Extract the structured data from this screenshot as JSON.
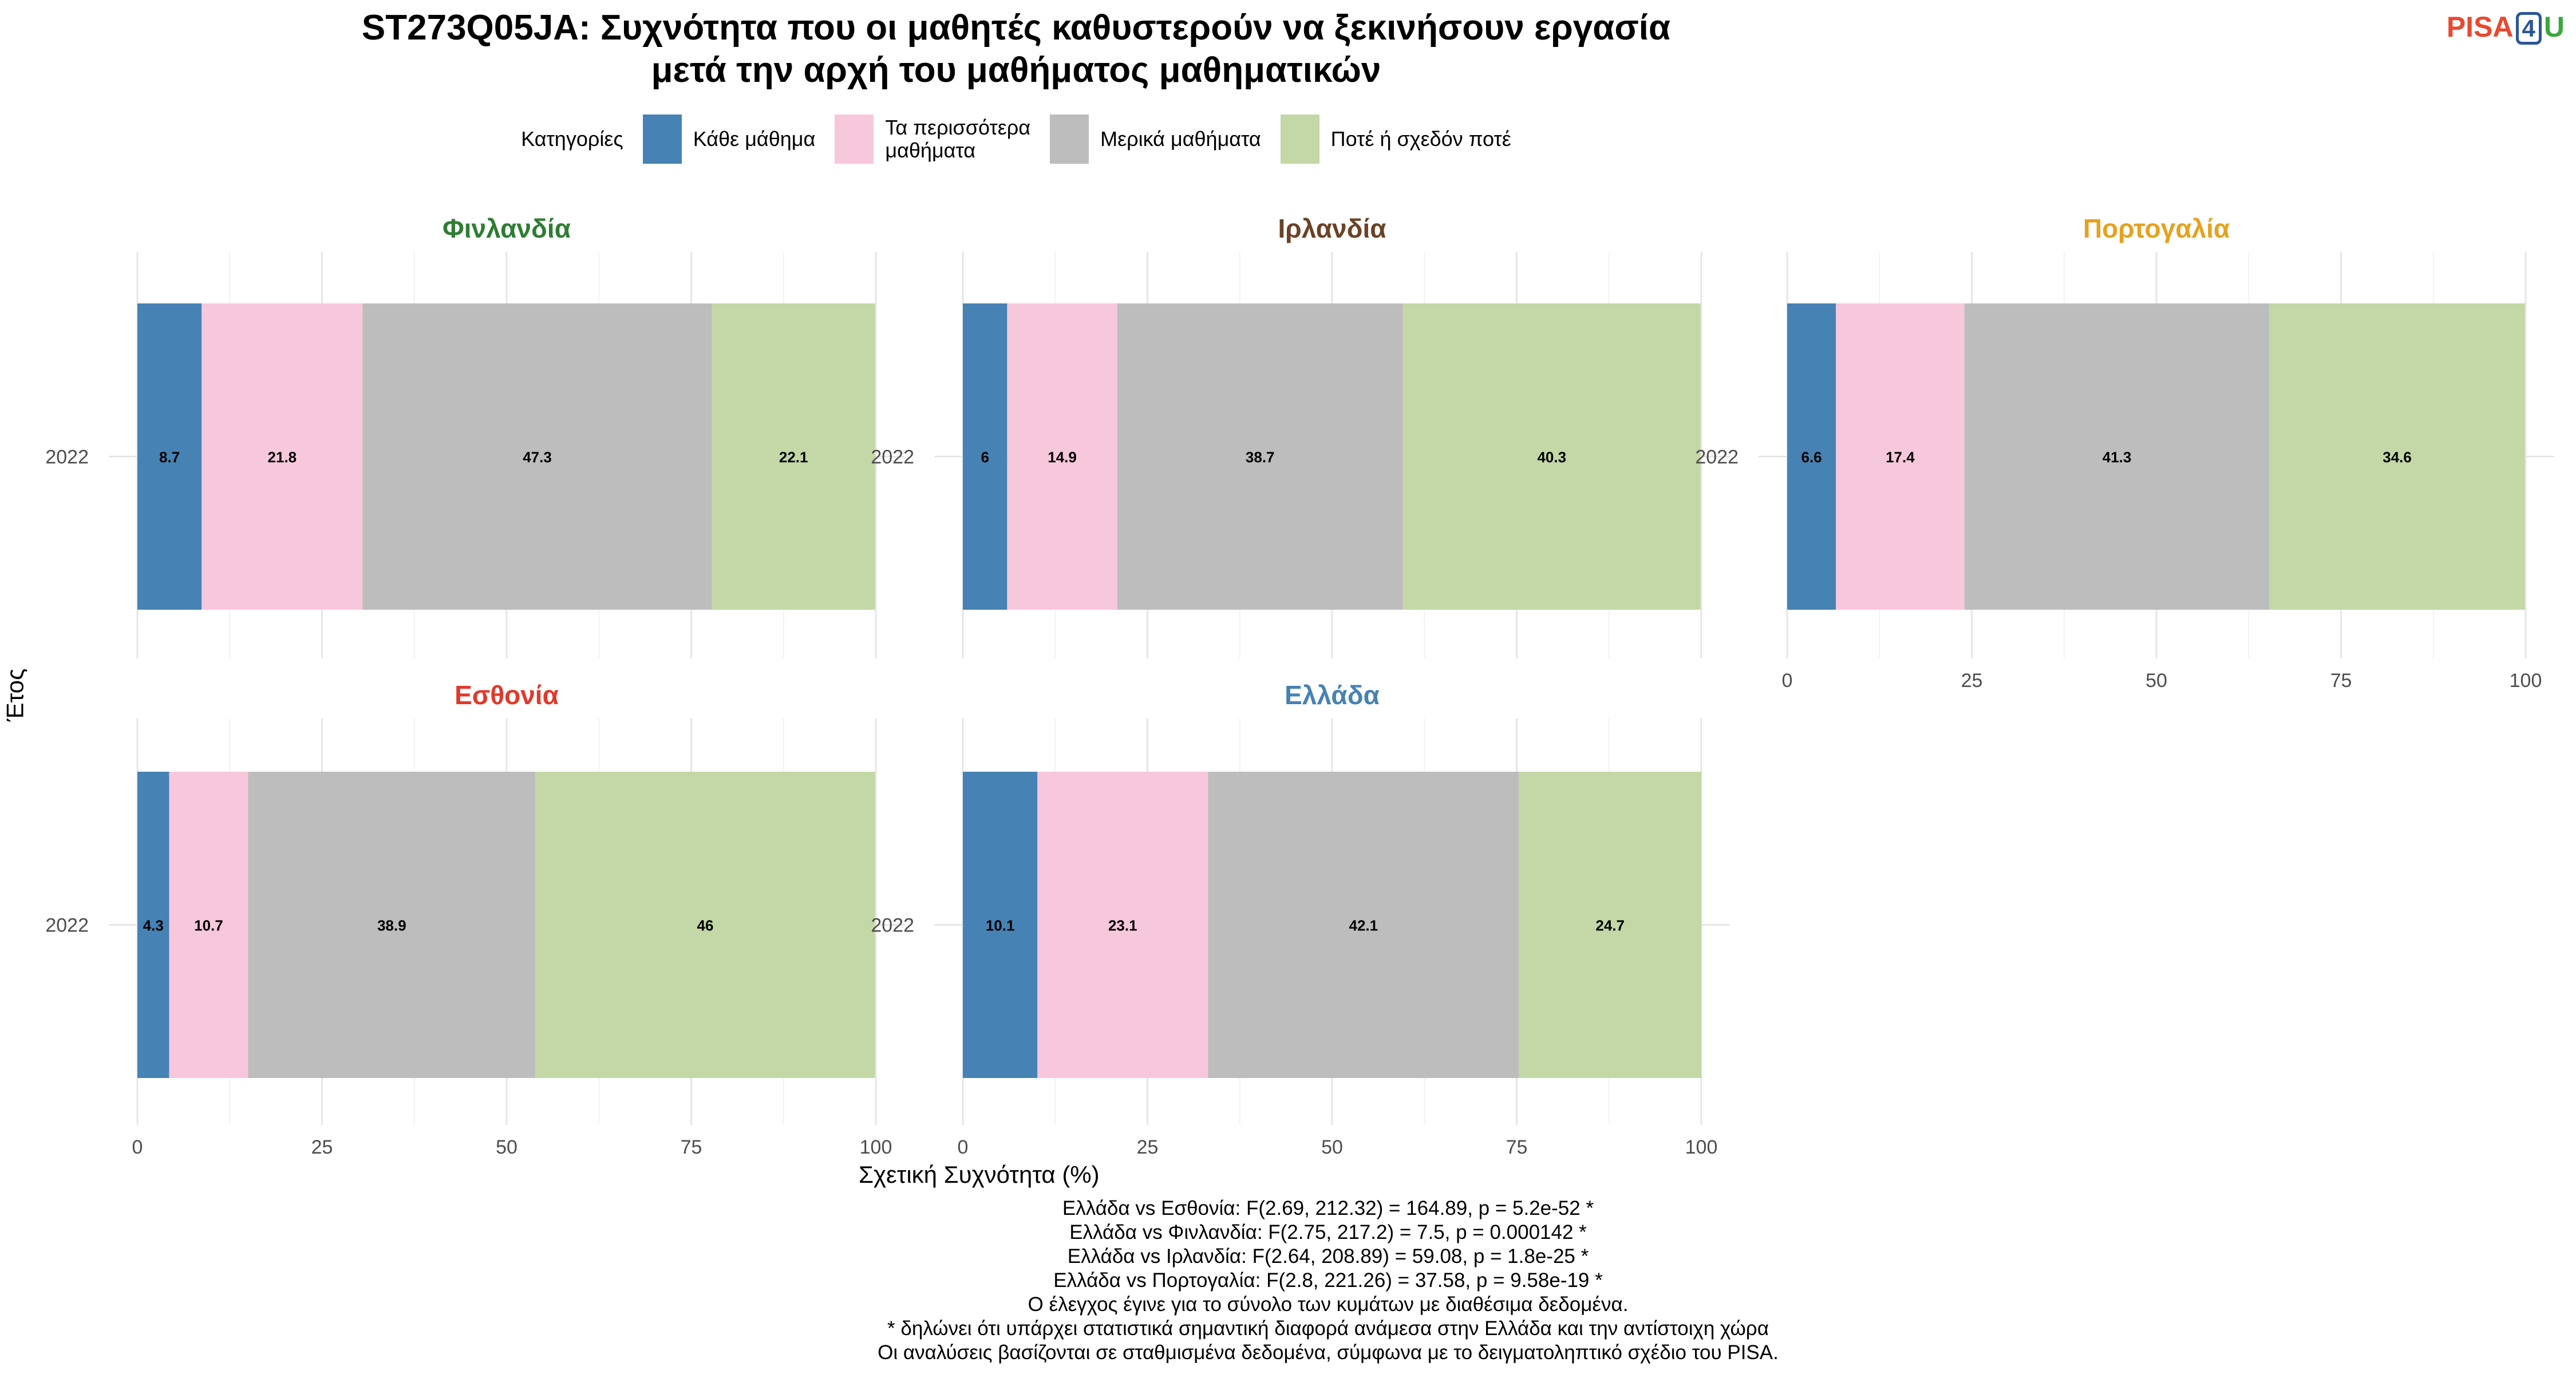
{
  "title_line1": "ST273Q05JA: Συχνότητα που οι μαθητές καθυστερούν να ξεκινήσουν εργασία",
  "title_line2": "μετά την αρχή του μαθήματος μαθηματικών",
  "logo": {
    "part1": "PISA",
    "part2": "4",
    "part3": "U"
  },
  "legend": {
    "title": "Κατηγορίες",
    "items": [
      {
        "label_lines": [
          "Κάθε μάθημα"
        ],
        "color": "#4682b4"
      },
      {
        "label_lines": [
          "Τα περισσότερα",
          "μαθήματα"
        ],
        "color": "#f7c7dc"
      },
      {
        "label_lines": [
          "Μερικά μαθήματα"
        ],
        "color": "#bdbdbd"
      },
      {
        "label_lines": [
          "Ποτέ ή σχεδόν ποτέ"
        ],
        "color": "#c3d8a6"
      }
    ]
  },
  "chart_data": {
    "type": "bar",
    "orientation": "horizontal",
    "stacked": true,
    "categories": [
      "Κάθε μάθημα",
      "Τα περισσότερα μαθήματα",
      "Μερικά μαθήματα",
      "Ποτέ ή σχεδόν ποτέ"
    ],
    "colors": [
      "#4682b4",
      "#f7c7dc",
      "#bdbdbd",
      "#c3d8a6"
    ],
    "xlabel": "Σχετική Συχνότητα (%)",
    "ylabel": "Έτος",
    "xlim": [
      0,
      100
    ],
    "xticks": [
      0,
      25,
      50,
      75,
      100
    ],
    "grid": true,
    "legend_position": "top",
    "panels": [
      {
        "country": "Φινλανδία",
        "title_color": "#2e7d32",
        "year": "2022",
        "values": [
          8.7,
          21.8,
          47.3,
          22.1
        ]
      },
      {
        "country": "Ιρλανδία",
        "title_color": "#6b4226",
        "year": "2022",
        "values": [
          6,
          14.9,
          38.7,
          40.3
        ]
      },
      {
        "country": "Πορτογαλία",
        "title_color": "#e6a21e",
        "year": "2022",
        "values": [
          6.6,
          17.4,
          41.3,
          34.6
        ]
      },
      {
        "country": "Εσθονία",
        "title_color": "#e0392b",
        "year": "2022",
        "values": [
          4.3,
          10.7,
          38.9,
          46
        ]
      },
      {
        "country": "Ελλάδα",
        "title_color": "#4682b4",
        "year": "2022",
        "values": [
          10.1,
          23.1,
          42.1,
          24.7
        ]
      }
    ]
  },
  "notes": [
    "Ελλάδα vs Εσθονία: F(2.69, 212.32) = 164.89, p = 5.2e-52 *",
    "Ελλάδα vs Φινλανδία: F(2.75, 217.2) = 7.5, p = 0.000142 *",
    "Ελλάδα vs Ιρλανδία: F(2.64, 208.89) = 59.08, p = 1.8e-25 *",
    "Ελλάδα vs Πορτογαλία: F(2.8, 221.26) = 37.58, p = 9.58e-19 *",
    "Ο έλεγχος έγινε για το σύνολο των κυμάτων με διαθέσιμα δεδομένα.",
    "* δηλώνει ότι υπάρχει στατιστικά σημαντική διαφορά ανάμεσα στην Ελλάδα και την αντίστοιχη χώρα",
    "Οι αναλύσεις βασίζονται σε σταθμισμένα δεδομένα, σύμφωνα με το δειγματοληπτικό σχέδιο του PISA."
  ]
}
